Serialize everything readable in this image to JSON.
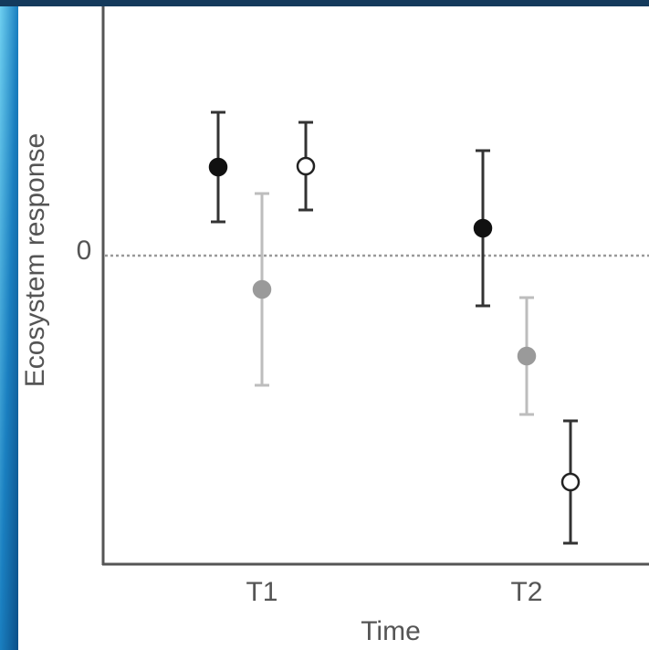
{
  "chart_data": {
    "type": "errorbar",
    "ylabel": "Ecosystem response",
    "xlabel": "Time",
    "categories": [
      "T1",
      "T2"
    ],
    "series": [
      {
        "color": "#111111",
        "bar_color": "#333333",
        "marker": "filled",
        "values": [
          0.97,
          0.3
        ],
        "errors": [
          0.6,
          0.85
        ]
      },
      {
        "color": "#9a9a9a",
        "bar_color": "#bdbdbd",
        "marker": "filled",
        "values": [
          -0.37,
          -1.1
        ],
        "errors": [
          1.05,
          0.64
        ]
      },
      {
        "color": "#222222",
        "bar_color": "#333333",
        "marker": "open",
        "values": [
          0.98,
          -2.48
        ],
        "errors": [
          0.48,
          0.67
        ]
      }
    ],
    "ylim": [
      -3.38,
      2.72
    ],
    "yticks": [
      0
    ],
    "grid": "dotted"
  }
}
